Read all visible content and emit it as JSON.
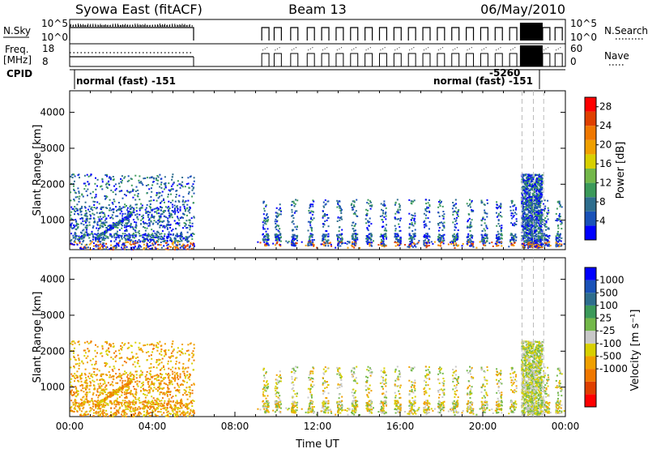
{
  "header": {
    "station": "Syowa East (fitACF)",
    "beam": "Beam 13",
    "date": "06/May/2010"
  },
  "params": {
    "nsky_label": "N.Sky",
    "nsky_ticks": [
      "10^5",
      "10^0"
    ],
    "nsearch_label": "N.Search",
    "nsearch_ticks": [
      "10^5",
      "10^0"
    ],
    "freq_label_1": "Freq.",
    "freq_label_2": "[MHz]",
    "freq_ticks": [
      "18",
      "8"
    ],
    "nave_label": "Nave",
    "nave_ticks": [
      "60",
      "0"
    ],
    "cpid_label": "CPID",
    "cpid_left_text": "normal (fast) -151",
    "cpid_right_text": "normal (fast) -151",
    "cpid_overlap_text": "-5260"
  },
  "colors": {
    "power": [
      "#0000ff",
      "#1a52b8",
      "#2e6e8e",
      "#3c9a5a",
      "#73b84a",
      "#d8d000",
      "#f0a000",
      "#f07800",
      "#e04000",
      "#ff0000"
    ],
    "velocity": [
      "#ff0000",
      "#e04000",
      "#f07800",
      "#f0a000",
      "#d8d000",
      "#c8c8c8",
      "#73b84a",
      "#3c9a5a",
      "#2e6e8e",
      "#1a52b8",
      "#0000ff"
    ]
  },
  "chart_data": [
    {
      "type": "heatmap",
      "name": "power",
      "xlabel": "Time UT",
      "ylabel": "Slant Range [km]",
      "ylim": [
        180,
        4600
      ],
      "yticks": [
        "1000",
        "2000",
        "3000",
        "4000"
      ],
      "xticks": [
        "00:00",
        "04:00",
        "08:00",
        "12:00",
        "16:00",
        "20:00",
        "00:00"
      ],
      "xlim_hours": [
        0,
        24
      ],
      "colorbar_label": "Power [dB]",
      "colorbar_ticks": [
        "4",
        "8",
        "12",
        "16",
        "20",
        "24",
        "28"
      ],
      "colorbar_range": [
        0,
        30
      ]
    },
    {
      "type": "heatmap",
      "name": "velocity",
      "xlabel": "Time UT",
      "ylabel": "Slant Range [km]",
      "ylim": [
        180,
        4600
      ],
      "yticks": [
        "1000",
        "2000",
        "3000",
        "4000"
      ],
      "xticks": [
        "00:00",
        "04:00",
        "08:00",
        "12:00",
        "16:00",
        "20:00",
        "00:00"
      ],
      "xlim_hours": [
        0,
        24
      ],
      "colorbar_label": "Velocity [m s⁻¹]",
      "colorbar_ticks": [
        "1000",
        "500",
        "100",
        "25",
        "-25",
        "-100",
        "-500",
        "-1000"
      ]
    }
  ]
}
